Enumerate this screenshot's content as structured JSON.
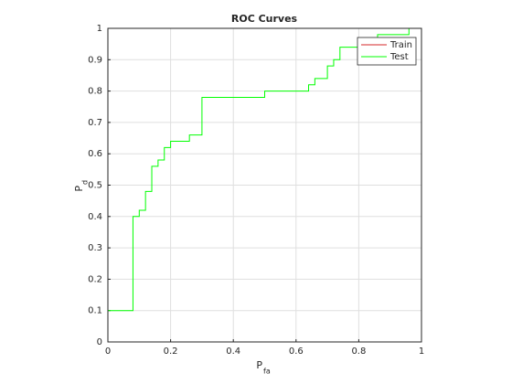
{
  "chart_data": {
    "type": "line",
    "title": "ROC Curves",
    "xlabel": "P",
    "xlabel_sub": "fa",
    "ylabel": "P",
    "ylabel_sub": "d",
    "xlim": [
      0,
      1
    ],
    "ylim": [
      0,
      1
    ],
    "xticks": [
      0,
      0.2,
      0.4,
      0.6,
      0.8,
      1
    ],
    "yticks": [
      0,
      0.1,
      0.2,
      0.3,
      0.4,
      0.5,
      0.6,
      0.7,
      0.8,
      0.9,
      1
    ],
    "grid": true,
    "legend": "northeast",
    "series": [
      {
        "name": "Train",
        "color": "#d62728",
        "x": [
          0,
          0,
          1
        ],
        "y": [
          0,
          1,
          1
        ]
      },
      {
        "name": "Test",
        "color": "#00ff00",
        "x": [
          0,
          0,
          0.08,
          0.08,
          0.1,
          0.1,
          0.12,
          0.12,
          0.14,
          0.14,
          0.16,
          0.16,
          0.18,
          0.18,
          0.2,
          0.2,
          0.26,
          0.26,
          0.3,
          0.3,
          0.5,
          0.5,
          0.64,
          0.64,
          0.66,
          0.66,
          0.7,
          0.7,
          0.72,
          0.72,
          0.74,
          0.74,
          0.86,
          0.86,
          0.96,
          0.96,
          1
        ],
        "y": [
          0,
          0.1,
          0.1,
          0.4,
          0.4,
          0.42,
          0.42,
          0.48,
          0.48,
          0.56,
          0.56,
          0.58,
          0.58,
          0.62,
          0.62,
          0.64,
          0.64,
          0.66,
          0.66,
          0.78,
          0.78,
          0.8,
          0.8,
          0.82,
          0.82,
          0.84,
          0.84,
          0.88,
          0.88,
          0.9,
          0.9,
          0.94,
          0.94,
          0.98,
          0.98,
          1,
          1
        ]
      }
    ]
  }
}
